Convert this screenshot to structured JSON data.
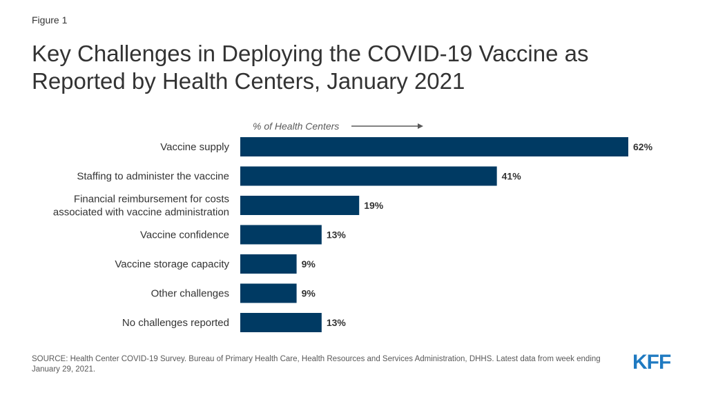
{
  "figure_label": "Figure 1",
  "axis_note": "% of Health Centers",
  "source": "SOURCE: Health Center COVID-19 Survey. Bureau of Primary Health Care, Health Resources and Services Administration, DHHS. Latest data from week ending January 29, 2021.",
  "logo_text": "KFF",
  "colors": {
    "bar": "#003a63",
    "logo": "#1f7ac1",
    "text": "#333333"
  },
  "chart_data": {
    "type": "bar",
    "orientation": "horizontal",
    "title": "Key Challenges in Deploying the COVID-19 Vaccine as Reported by Health Centers, January 2021",
    "categories": [
      [
        "Vaccine supply"
      ],
      [
        "Staffing to administer the vaccine"
      ],
      [
        "Financial reimbursement for costs",
        "associated with vaccine administration"
      ],
      [
        "Vaccine confidence"
      ],
      [
        "Vaccine storage capacity"
      ],
      [
        "Other challenges"
      ],
      [
        "No challenges reported"
      ]
    ],
    "values": [
      62,
      41,
      19,
      13,
      9,
      9,
      13
    ],
    "value_labels": [
      "62%",
      "41%",
      "19%",
      "13%",
      "9%",
      "9%",
      "13%"
    ],
    "unit": "%",
    "xlim": [
      0,
      62
    ],
    "grid": false,
    "legend": "none"
  }
}
